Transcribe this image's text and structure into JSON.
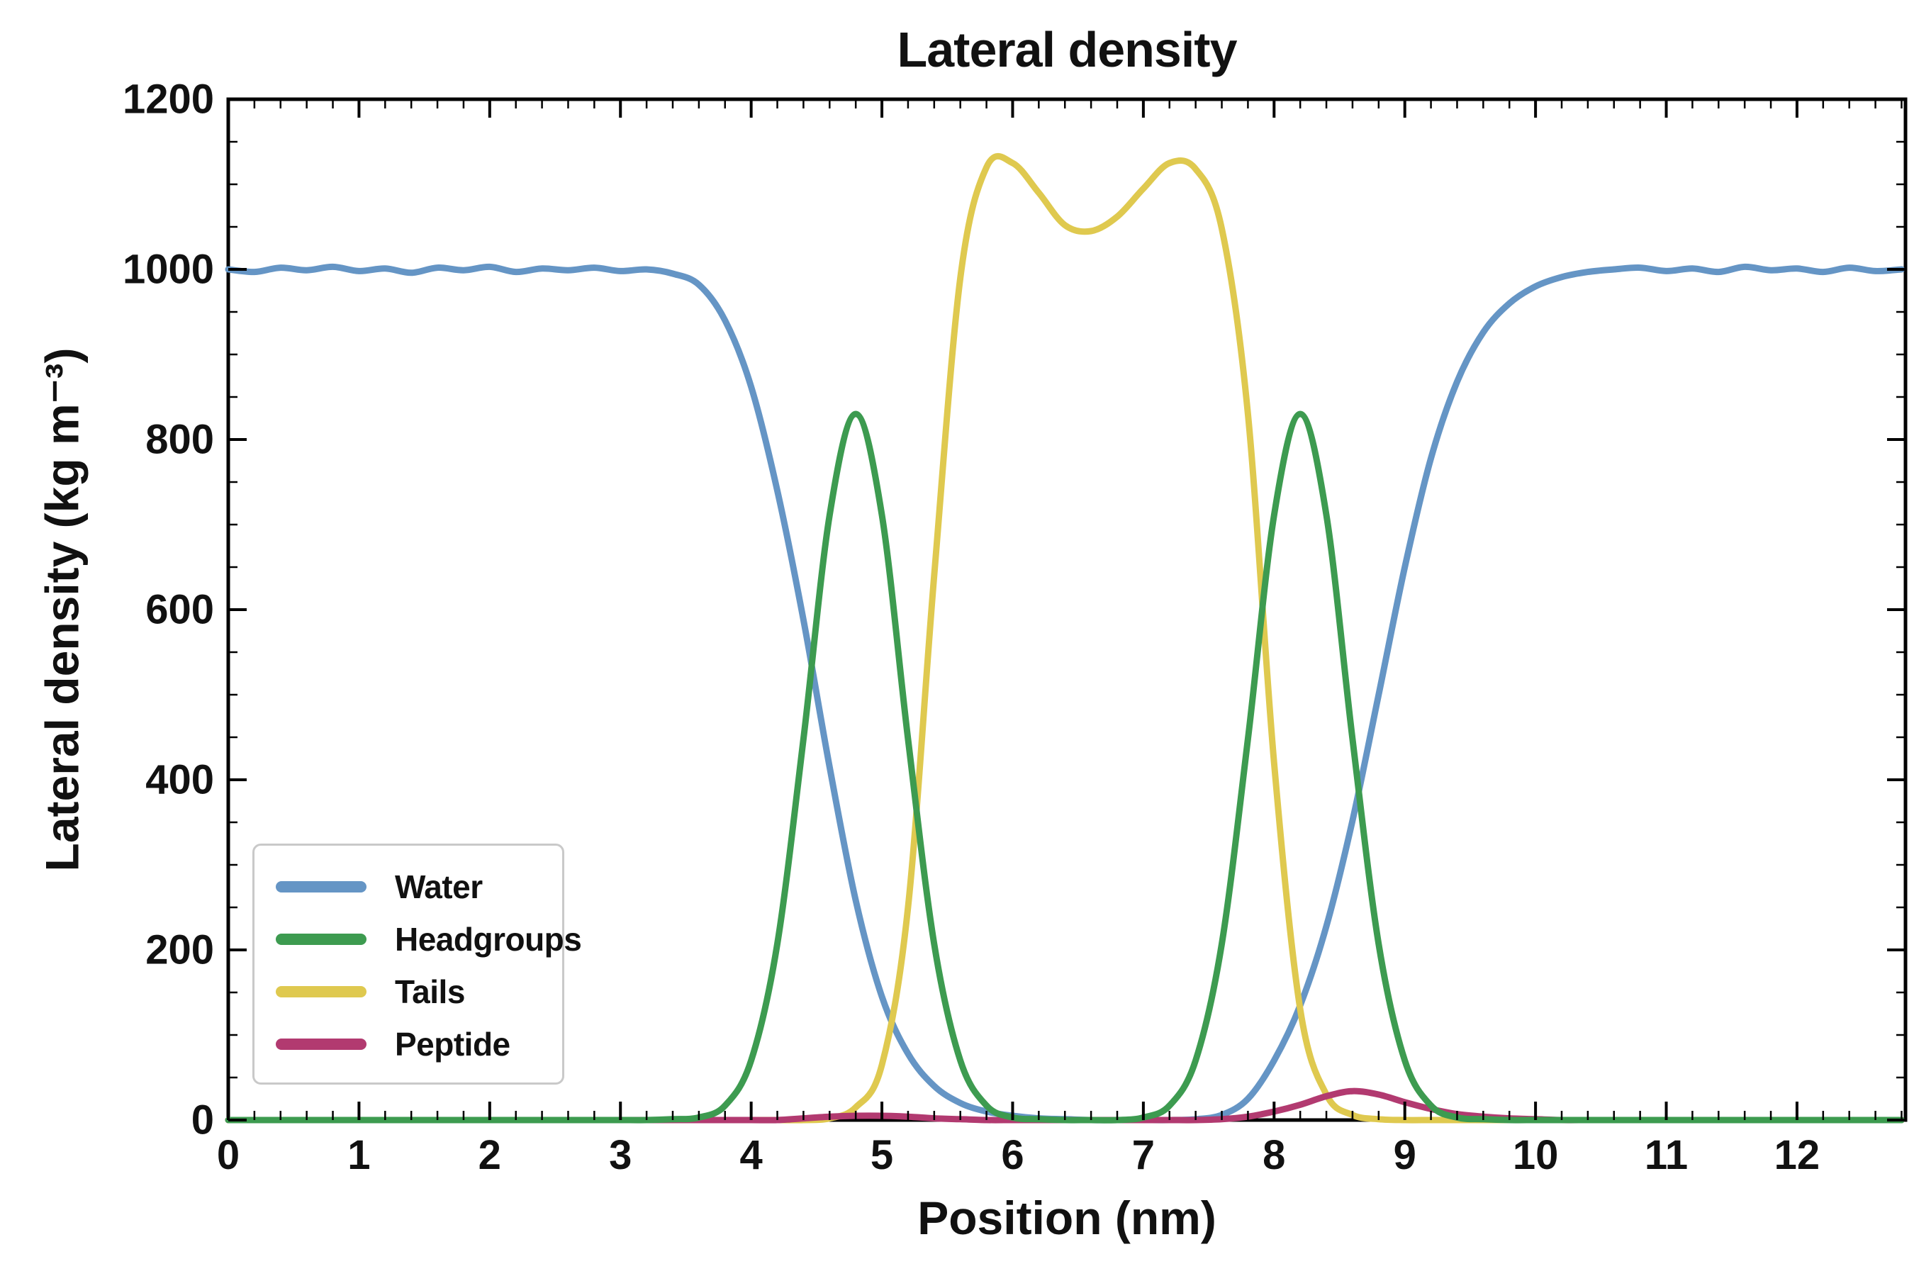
{
  "chart_data": {
    "type": "line",
    "title": "Lateral density",
    "xlabel": "Position (nm)",
    "ylabel": "Lateral density (kg m⁻³)",
    "xlim": [
      0,
      12.83
    ],
    "ylim": [
      0,
      1200
    ],
    "grid": false,
    "legend_position": "lower left",
    "x_major_ticks": [
      0,
      1,
      2,
      3,
      4,
      5,
      6,
      7,
      8,
      9,
      10,
      11,
      12
    ],
    "x_minor_step": 0.2,
    "y_major_ticks": [
      0,
      200,
      400,
      600,
      800,
      1000,
      1200
    ],
    "y_minor_step": 50,
    "x": [
      0.0,
      0.2,
      0.4,
      0.6,
      0.8,
      1.0,
      1.2,
      1.4,
      1.6,
      1.8,
      2.0,
      2.2,
      2.4,
      2.6,
      2.8,
      3.0,
      3.2,
      3.4,
      3.6,
      3.8,
      4.0,
      4.2,
      4.4,
      4.6,
      4.8,
      5.0,
      5.2,
      5.4,
      5.6,
      5.8,
      6.0,
      6.2,
      6.4,
      6.6,
      6.8,
      7.0,
      7.2,
      7.4,
      7.6,
      7.8,
      8.0,
      8.2,
      8.4,
      8.6,
      8.8,
      9.0,
      9.2,
      9.4,
      9.6,
      9.8,
      10.0,
      10.2,
      10.4,
      10.6,
      10.8,
      11.0,
      11.2,
      11.4,
      11.6,
      11.8,
      12.0,
      12.2,
      12.4,
      12.6,
      12.8
    ],
    "series": [
      {
        "name": "Water",
        "color": "#6595c5",
        "values": [
          1000,
          997,
          1002,
          999,
          1003,
          998,
          1001,
          996,
          1002,
          999,
          1003,
          997,
          1001,
          999,
          1002,
          998,
          1000,
          995,
          982,
          940,
          862,
          740,
          588,
          415,
          258,
          145,
          78,
          40,
          20,
          10,
          5,
          2,
          1,
          0,
          0,
          0,
          0,
          1,
          6,
          25,
          70,
          135,
          228,
          352,
          500,
          650,
          778,
          868,
          926,
          960,
          980,
          991,
          997,
          1000,
          1002,
          998,
          1001,
          997,
          1003,
          999,
          1001,
          997,
          1002,
          998,
          1000
        ]
      },
      {
        "name": "Headgroups",
        "color": "#3d9b50",
        "values": [
          0,
          0,
          0,
          0,
          0,
          0,
          0,
          0,
          0,
          0,
          0,
          0,
          0,
          0,
          0,
          0,
          0,
          1,
          3,
          17,
          70,
          207,
          448,
          711,
          830,
          711,
          448,
          207,
          70,
          17,
          3,
          1,
          0,
          0,
          0,
          3,
          17,
          70,
          207,
          448,
          711,
          830,
          711,
          448,
          207,
          70,
          17,
          3,
          1,
          0,
          0,
          0,
          0,
          0,
          0,
          0,
          0,
          0,
          0,
          0,
          0,
          0,
          0,
          0,
          0
        ]
      },
      {
        "name": "Tails",
        "color": "#dfc94f",
        "values": [
          0,
          0,
          0,
          0,
          0,
          0,
          0,
          0,
          0,
          0,
          0,
          0,
          0,
          0,
          0,
          0,
          0,
          0,
          0,
          0,
          0,
          0,
          0,
          2,
          15,
          65,
          250,
          640,
          990,
          1120,
          1125,
          1090,
          1052,
          1045,
          1062,
          1095,
          1125,
          1118,
          1048,
          830,
          420,
          130,
          30,
          6,
          1,
          0,
          0,
          0,
          0,
          0,
          0,
          0,
          0,
          0,
          0,
          0,
          0,
          0,
          0,
          0,
          0,
          0,
          0,
          0,
          0
        ]
      },
      {
        "name": "Peptide",
        "color": "#b23a70",
        "values": [
          0,
          0,
          0,
          0,
          0,
          0,
          0,
          0,
          0,
          0,
          0,
          0,
          0,
          0,
          0,
          0,
          0,
          0,
          0,
          0,
          0,
          0,
          2,
          4,
          5,
          5,
          4,
          2,
          1,
          0,
          0,
          0,
          0,
          0,
          0,
          0,
          0,
          0,
          1,
          4,
          10,
          18,
          28,
          34,
          30,
          21,
          13,
          7,
          4,
          2,
          1,
          0,
          0,
          0,
          0,
          0,
          0,
          0,
          0,
          0,
          0,
          0,
          0,
          0,
          0
        ]
      }
    ]
  }
}
